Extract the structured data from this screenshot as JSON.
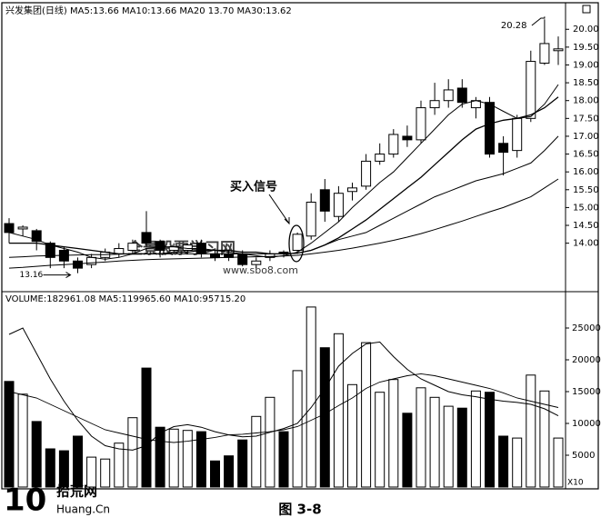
{
  "chart_data": [
    {
      "type": "candlestick",
      "legend_text": "兴发集团(日线) MA5:13.66 MA10:13.66 MA20 13.70 MA30:13.62",
      "open": [
        14.55,
        14.4,
        14.35,
        14.0,
        13.8,
        13.5,
        13.4,
        13.6,
        13.7,
        13.8,
        14.3,
        14.05,
        13.8,
        13.8,
        14.0,
        13.7,
        13.7,
        13.7,
        13.4,
        13.6,
        13.75,
        13.8,
        14.2,
        15.5,
        14.75,
        15.45,
        15.6,
        16.3,
        16.5,
        17.0,
        16.9,
        17.8,
        18.0,
        18.35,
        17.8,
        17.95,
        16.8,
        16.6,
        17.5,
        19.05,
        19.4
      ],
      "high": [
        14.7,
        14.5,
        14.4,
        14.05,
        13.9,
        13.6,
        13.7,
        13.85,
        14.0,
        14.1,
        14.9,
        14.1,
        14.0,
        14.0,
        14.1,
        13.8,
        13.8,
        13.8,
        13.6,
        13.8,
        13.8,
        14.3,
        15.4,
        15.8,
        15.6,
        15.7,
        16.5,
        16.8,
        17.2,
        17.3,
        18.0,
        18.5,
        18.6,
        18.6,
        18.1,
        18.1,
        17.0,
        17.6,
        19.4,
        20.28,
        19.8
      ],
      "low": [
        14.0,
        14.2,
        13.8,
        13.3,
        13.3,
        13.16,
        13.3,
        13.5,
        13.6,
        13.7,
        13.9,
        13.6,
        13.7,
        13.7,
        13.6,
        13.5,
        13.5,
        13.35,
        13.3,
        13.5,
        13.6,
        13.7,
        14.1,
        14.6,
        14.6,
        15.2,
        15.5,
        16.2,
        16.4,
        16.7,
        16.8,
        17.6,
        17.8,
        17.8,
        17.5,
        16.4,
        15.9,
        16.4,
        17.4,
        19.0,
        19.0
      ],
      "close": [
        14.3,
        14.45,
        14.05,
        13.6,
        13.5,
        13.3,
        13.6,
        13.75,
        13.85,
        14.0,
        14.0,
        13.8,
        13.9,
        13.95,
        13.7,
        13.6,
        13.6,
        13.4,
        13.5,
        13.7,
        13.7,
        14.25,
        15.15,
        14.9,
        15.4,
        15.55,
        16.3,
        16.5,
        17.05,
        16.9,
        17.8,
        18.0,
        18.3,
        17.95,
        18.0,
        16.5,
        16.55,
        17.5,
        19.1,
        19.6,
        19.45
      ],
      "ma": [
        {
          "name": "MA5",
          "values": [
            14.3,
            14.2,
            14.1,
            13.95,
            13.85,
            13.75,
            13.6,
            13.55,
            13.6,
            13.7,
            13.85,
            13.9,
            13.9,
            13.85,
            13.85,
            13.8,
            13.75,
            13.7,
            13.65,
            13.6,
            13.65,
            13.75,
            14.0,
            14.3,
            14.6,
            15.0,
            15.35,
            15.7,
            16.0,
            16.4,
            16.8,
            17.2,
            17.6,
            17.9,
            18.0,
            17.9,
            17.7,
            17.5,
            17.55,
            17.9,
            18.45
          ]
        },
        {
          "name": "MA10",
          "values": [
            14.0,
            14.0,
            14.0,
            13.95,
            13.9,
            13.85,
            13.8,
            13.75,
            13.7,
            13.7,
            13.7,
            13.7,
            13.75,
            13.75,
            13.8,
            13.8,
            13.8,
            13.75,
            13.75,
            13.7,
            13.7,
            13.72,
            13.8,
            13.95,
            14.15,
            14.4,
            14.65,
            14.95,
            15.25,
            15.55,
            15.85,
            16.2,
            16.55,
            16.9,
            17.2,
            17.35,
            17.45,
            17.5,
            17.6,
            17.8,
            18.1
          ]
        },
        {
          "name": "MA20",
          "values": [
            13.6,
            13.62,
            13.64,
            13.65,
            13.66,
            13.67,
            13.68,
            13.68,
            13.69,
            13.7,
            13.7,
            13.7,
            13.7,
            13.7,
            13.7,
            13.7,
            13.7,
            13.7,
            13.7,
            13.7,
            13.7,
            13.72,
            13.8,
            13.95,
            14.1,
            14.2,
            14.3,
            14.5,
            14.7,
            14.9,
            15.1,
            15.3,
            15.45,
            15.6,
            15.75,
            15.85,
            15.95,
            16.1,
            16.25,
            16.6,
            17.0
          ]
        },
        {
          "name": "MA30",
          "values": [
            13.3,
            13.32,
            13.35,
            13.38,
            13.4,
            13.42,
            13.45,
            13.47,
            13.5,
            13.52,
            13.54,
            13.55,
            13.56,
            13.57,
            13.58,
            13.59,
            13.6,
            13.61,
            13.62,
            13.63,
            13.64,
            13.66,
            13.7,
            13.75,
            13.8,
            13.86,
            13.93,
            14.0,
            14.08,
            14.17,
            14.27,
            14.38,
            14.5,
            14.62,
            14.75,
            14.88,
            15.0,
            15.15,
            15.3,
            15.55,
            15.8
          ]
        }
      ],
      "ylim": [
        12.64,
        20.72
      ],
      "yticks": [
        {
          "value": 14,
          "label": "14.00"
        },
        {
          "value": 14.5,
          "label": "14.50"
        },
        {
          "value": 15,
          "label": "15.00"
        },
        {
          "value": 15.5,
          "label": "15.50"
        },
        {
          "value": 16,
          "label": "16.00"
        },
        {
          "value": 16.5,
          "label": "16.50"
        },
        {
          "value": 17,
          "label": "17.00"
        },
        {
          "value": 17.5,
          "label": "17.50"
        },
        {
          "value": 18,
          "label": "18.00"
        },
        {
          "value": 18.5,
          "label": "18.50"
        },
        {
          "value": 19,
          "label": "19.00"
        },
        {
          "value": 19.5,
          "label": "19.50"
        },
        {
          "value": 20,
          "label": "20.00"
        }
      ],
      "signal_label": "买入信号",
      "up_color": "#ffffff",
      "down_color": "#000000"
    },
    {
      "type": "volume",
      "title": "VOLUME:182961.08 MA5:119965.60 MA10:95715.20",
      "values": [
        16600,
        14600,
        10300,
        6000,
        5700,
        8000,
        4700,
        4400,
        6900,
        10900,
        18700,
        9400,
        9100,
        8900,
        8700,
        4100,
        4900,
        7400,
        11100,
        14100,
        8700,
        18300,
        28300,
        21900,
        24100,
        16100,
        22700,
        14900,
        16900,
        11600,
        15600,
        14100,
        12700,
        12400,
        15100,
        14900,
        8000,
        7700,
        17600,
        15100,
        7700
      ],
      "ma": [
        {
          "name": "MA5",
          "values": [
            24000,
            25000,
            21000,
            17000,
            13500,
            10500,
            8000,
            6500,
            6000,
            5800,
            6500,
            8500,
            9500,
            9800,
            9400,
            8700,
            8200,
            7900,
            8000,
            8600,
            9200,
            10000,
            12500,
            15500,
            19000,
            21000,
            22500,
            22800,
            20500,
            18500,
            17000,
            16000,
            15000,
            14500,
            14200,
            13800,
            13500,
            13300,
            13000,
            12300,
            11200
          ]
        },
        {
          "name": "MA10",
          "values": [
            15000,
            14500,
            14000,
            13000,
            12000,
            11000,
            10000,
            9000,
            8500,
            8000,
            7500,
            7200,
            7000,
            7200,
            7500,
            7800,
            8200,
            8300,
            8500,
            8700,
            9000,
            9500,
            10500,
            11500,
            12800,
            14000,
            15500,
            16500,
            17000,
            17500,
            17800,
            17500,
            17000,
            16500,
            16000,
            15500,
            14800,
            14000,
            13500,
            13000,
            12500
          ]
        }
      ],
      "ylim": [
        0,
        29000
      ],
      "yticks": [
        5000,
        10000,
        15000,
        20000,
        25000
      ],
      "unit_label": "X10"
    }
  ],
  "page": {
    "caption": "图 3-8",
    "watermark": "全景股票学习网",
    "watermark_url": "www.sbo8.com",
    "logo_number": "10",
    "logo_name": "拾荒网",
    "logo_url": "Huang.Cn"
  }
}
